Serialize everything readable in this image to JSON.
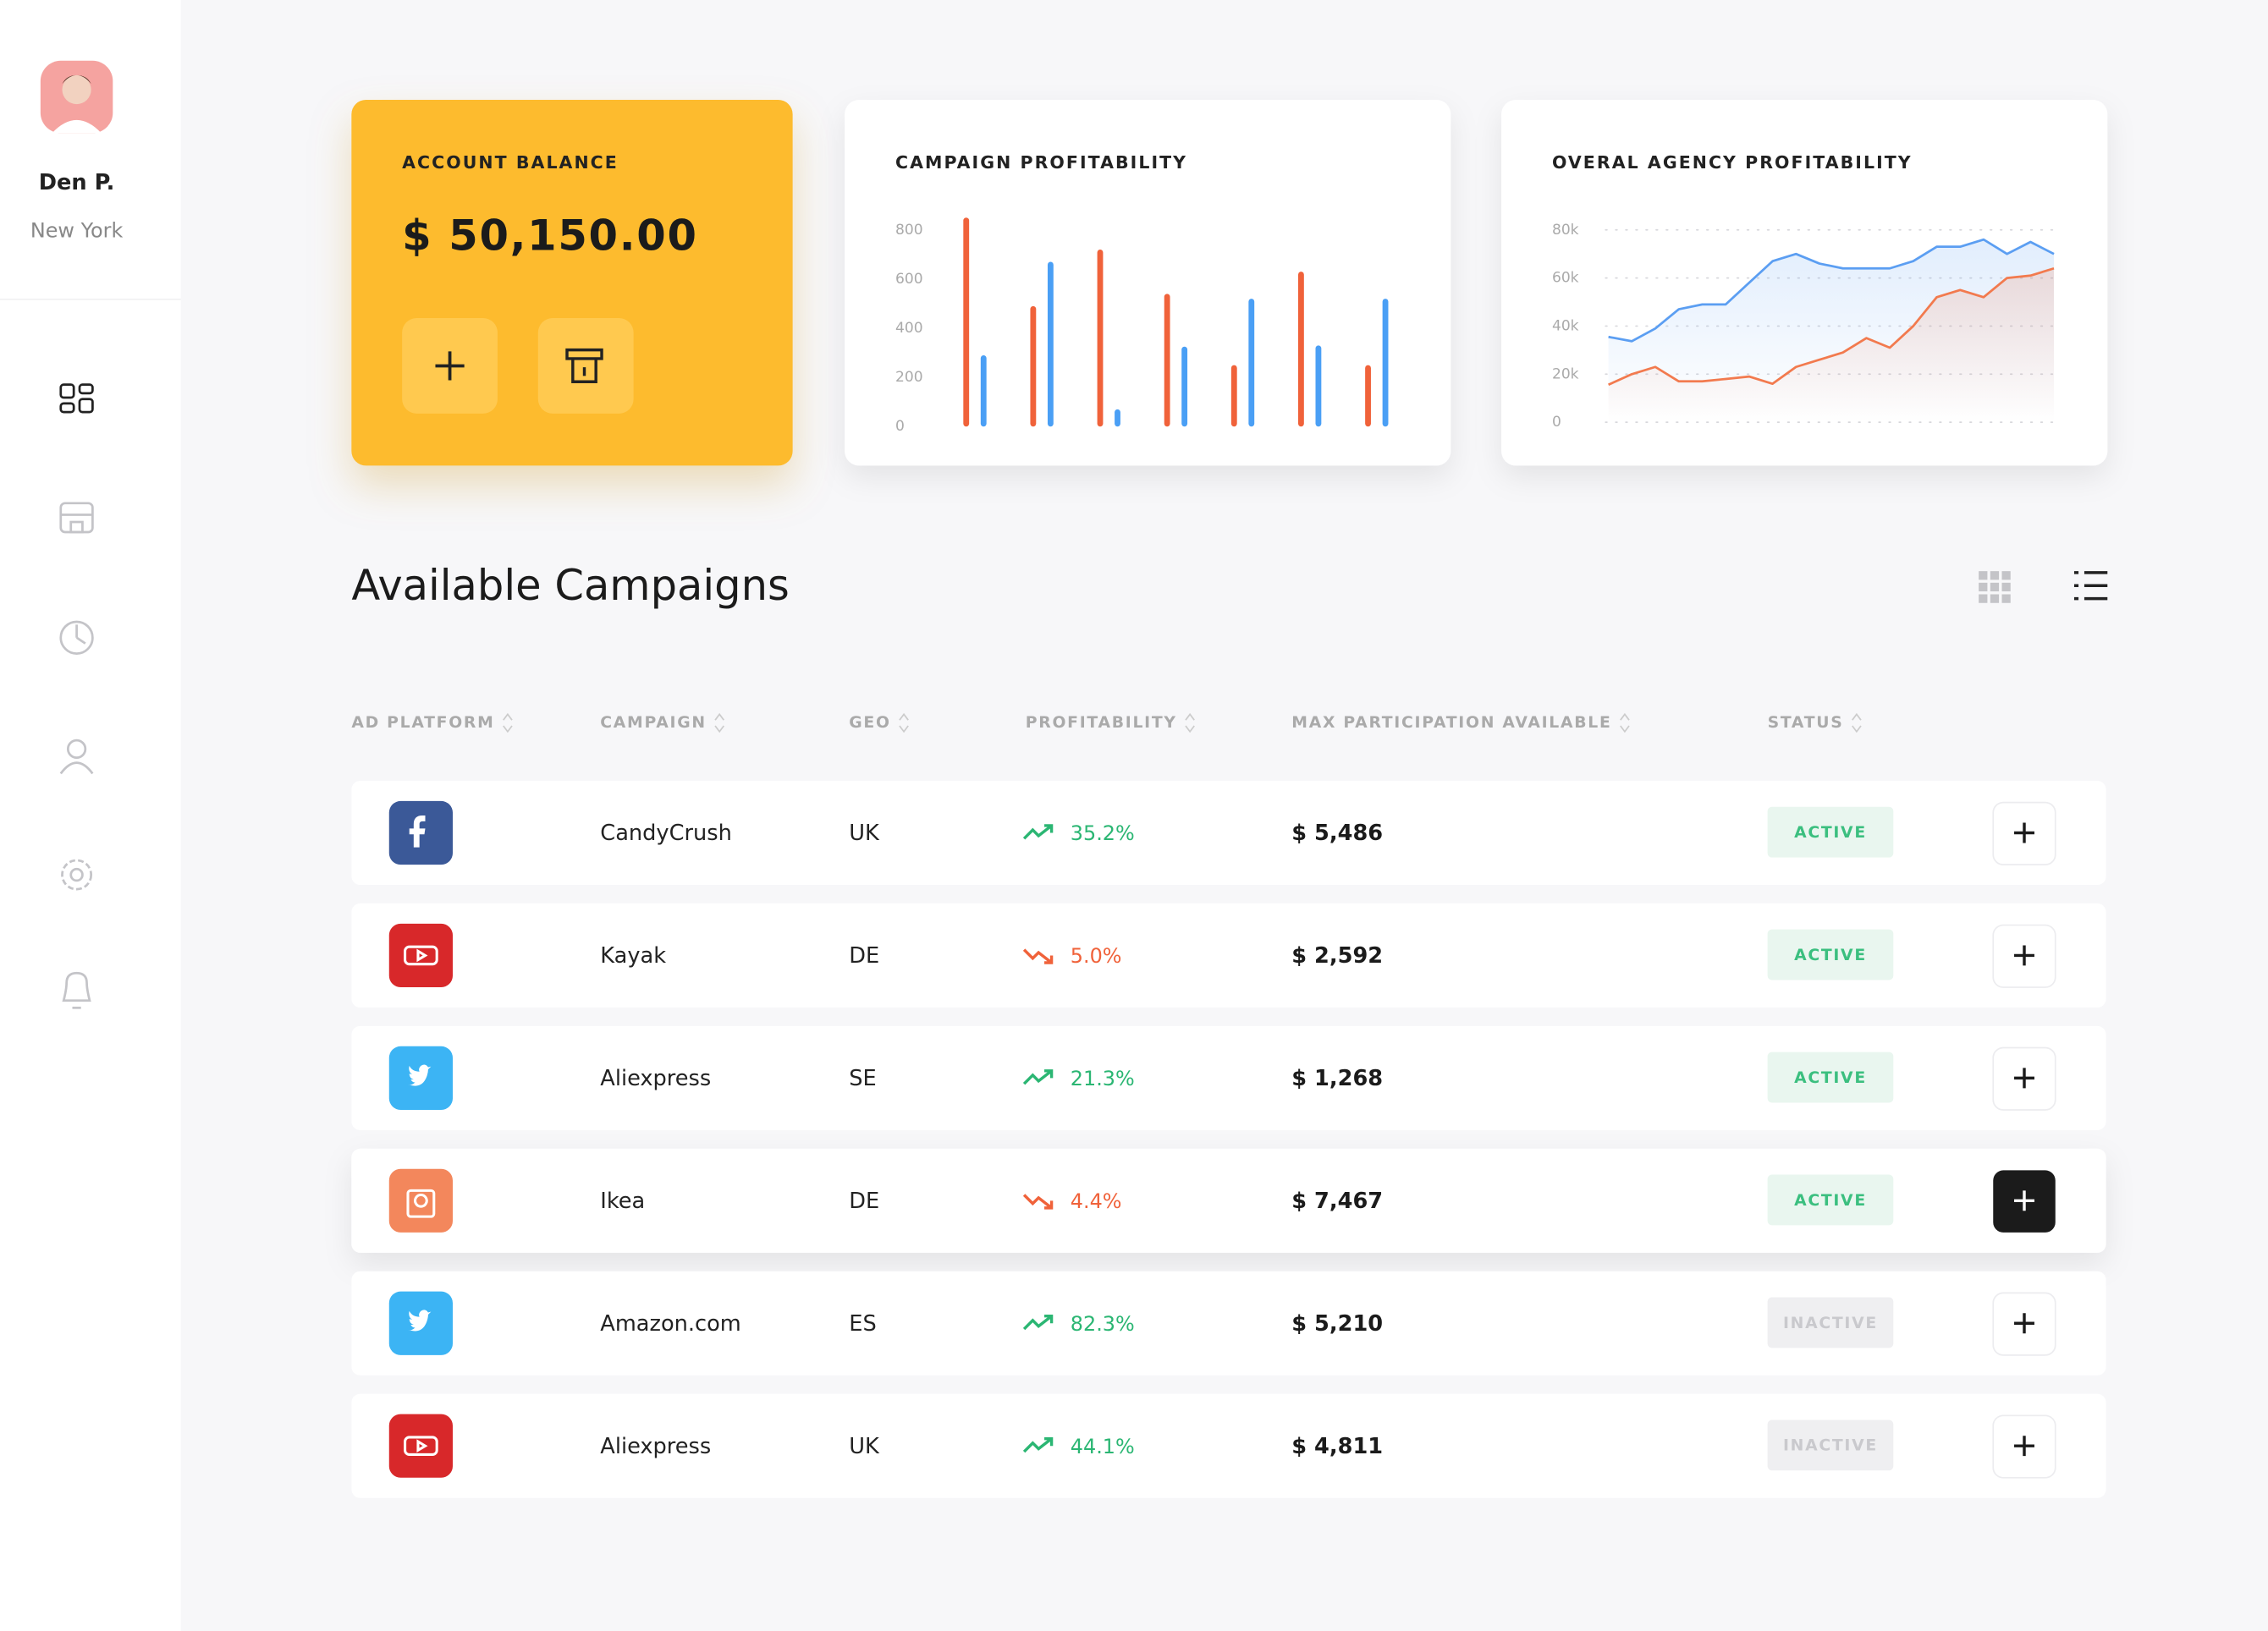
{
  "sidebar": {
    "user": {
      "name": "Den P.",
      "location": "New York"
    }
  },
  "balance": {
    "title": "ACCOUNT BALANCE",
    "amount": "$ 50,150.00"
  },
  "chart_data": [
    {
      "type": "bar",
      "title": "CAMPAIGN PROFITABILITY",
      "categories": [
        null,
        null,
        null,
        null,
        null,
        null,
        null
      ],
      "series": [
        {
          "color": "#f0623a",
          "values": [
            850,
            490,
            720,
            540,
            250,
            630,
            250
          ]
        },
        {
          "color": "#4a9ff5",
          "values": [
            290,
            670,
            70,
            325,
            520,
            330,
            520
          ]
        }
      ],
      "ylim": [
        0,
        800
      ],
      "yticks": [
        0,
        200,
        400,
        600,
        800
      ],
      "grid": false
    },
    {
      "type": "line",
      "title": "OVERAL AGENCY PROFITABILITY",
      "categories": [
        null,
        null,
        null,
        null,
        null,
        null,
        null,
        null,
        null,
        null,
        null,
        null,
        null,
        null,
        null,
        null,
        null,
        null,
        null,
        null
      ],
      "series": [
        {
          "color": "#5b9ef2",
          "values": [
            35500,
            33700,
            39000,
            47000,
            49000,
            49000,
            58000,
            67000,
            70000,
            66000,
            64000,
            64000,
            64000,
            67000,
            73000,
            73000,
            76000,
            70000,
            75000,
            70000
          ]
        },
        {
          "color": "#f27a4e",
          "values": [
            15600,
            20000,
            23000,
            17000,
            17000,
            18000,
            19000,
            16000,
            23000,
            26000,
            29000,
            35000,
            31000,
            40000,
            52000,
            55000,
            52000,
            60000,
            61000,
            64000
          ]
        }
      ],
      "ylim": [
        0,
        80000
      ],
      "yticks": [
        0,
        {
          "value": 20000,
          "label": "20k"
        },
        {
          "value": 40000,
          "label": "40k"
        },
        {
          "value": 60000,
          "label": "60k"
        },
        {
          "value": 80000,
          "label": "80k"
        }
      ],
      "grid": true
    }
  ],
  "campaigns": {
    "title": "Available Campaigns",
    "columns": [
      "AD PLATFORM",
      "CAMPAIGN",
      "GEO",
      "PROFITABILITY",
      "MAX PARTICIPATION AVAILABLE",
      "STATUS"
    ],
    "rows": [
      [
        "CandyCrush",
        "UK",
        "35.2%",
        "$ 5,486",
        "ACTIVE"
      ],
      [
        "Kayak",
        "DE",
        "5.0%",
        "$ 2,592",
        "ACTIVE"
      ],
      [
        "Aliexpress",
        "SE",
        "21.3%",
        "$ 1,268",
        "ACTIVE"
      ],
      [
        "Ikea",
        "DE",
        "4.4%",
        "$ 7,467",
        "ACTIVE"
      ],
      [
        "Amazon.com",
        "ES",
        "82.3%",
        "$ 5,210",
        "INACTIVE"
      ],
      [
        "Aliexpress",
        "UK",
        "44.1%",
        "$ 4,811",
        "INACTIVE"
      ]
    ]
  }
}
